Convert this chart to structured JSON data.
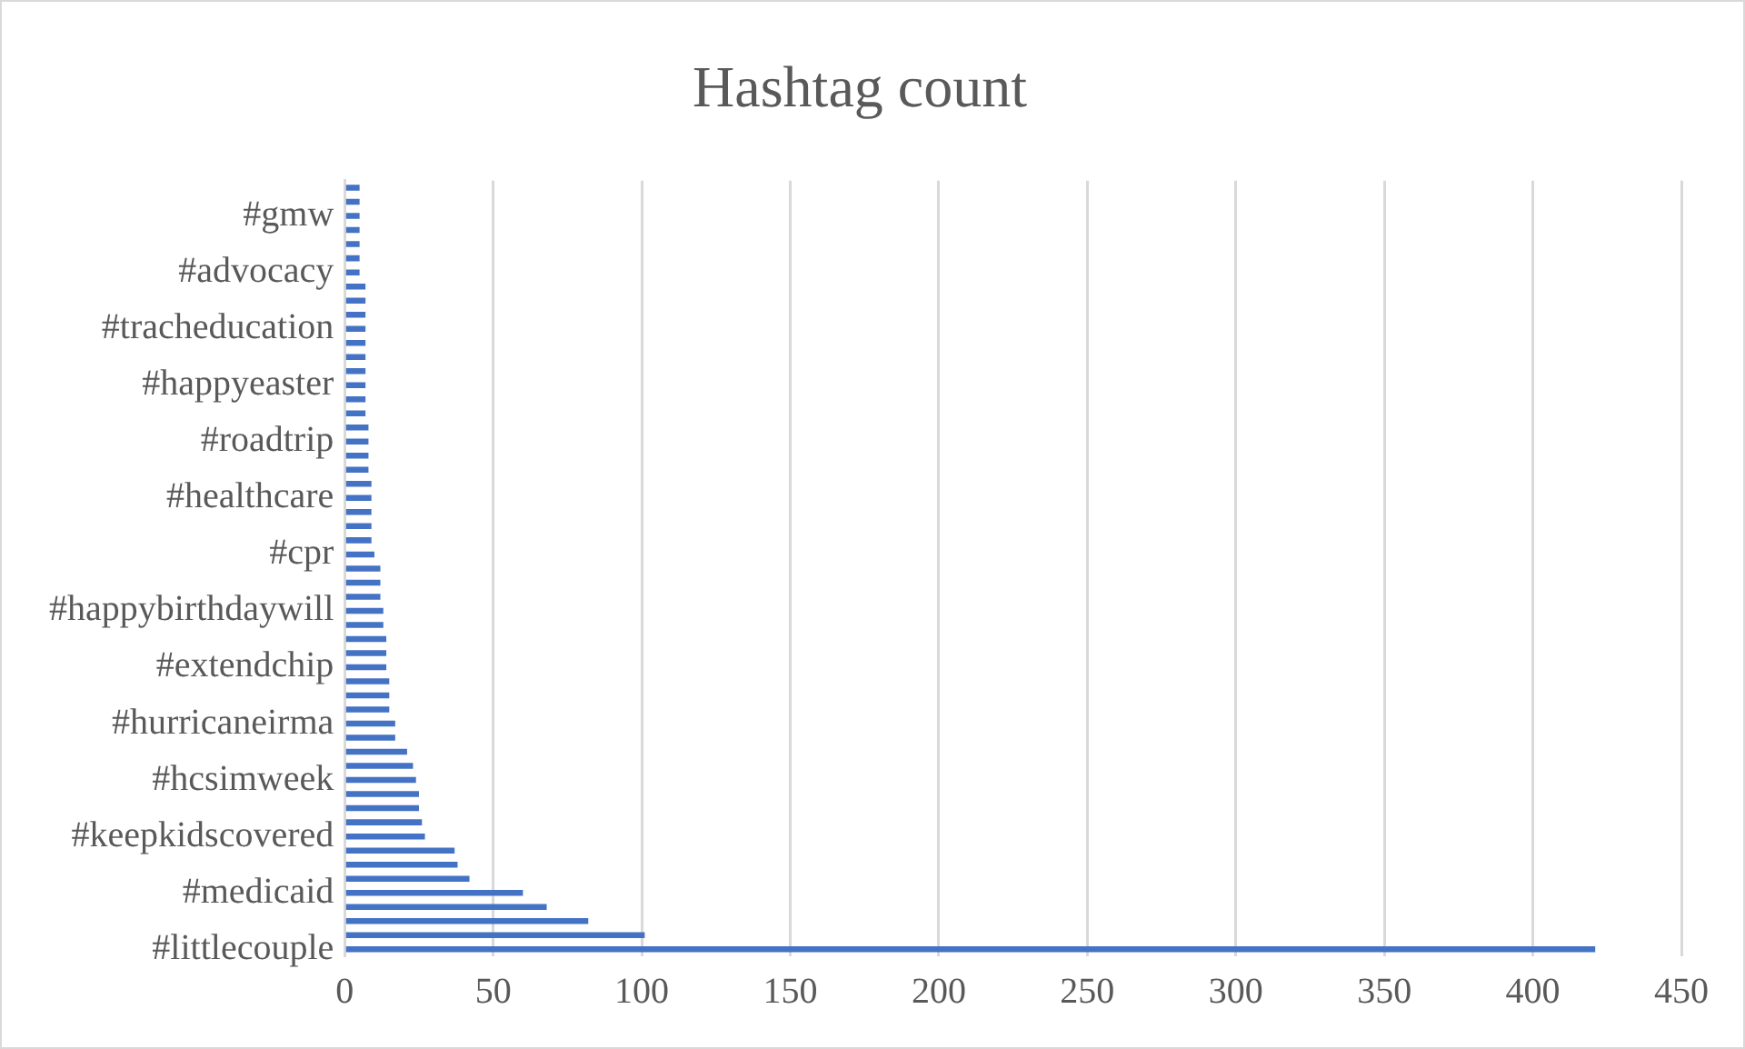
{
  "chart_data": {
    "type": "bar",
    "orientation": "horizontal",
    "title": "Hashtag count",
    "categories": [
      null,
      null,
      "#gmw",
      null,
      null,
      null,
      "#advocacy",
      null,
      null,
      null,
      "#tracheducation",
      null,
      null,
      null,
      "#happyeaster",
      null,
      null,
      null,
      "#roadtrip",
      null,
      null,
      null,
      "#healthcare",
      null,
      null,
      null,
      "#cpr",
      null,
      null,
      null,
      "#happybirthdaywill",
      null,
      null,
      null,
      "#extendchip",
      null,
      null,
      null,
      "#hurricaneirma",
      null,
      null,
      null,
      "#hcsimweek",
      null,
      null,
      null,
      "#keepkidscovered",
      null,
      null,
      null,
      "#medicaid",
      null,
      null,
      null,
      "#littlecouple"
    ],
    "values": [
      5,
      5,
      5,
      5,
      5,
      5,
      5,
      7,
      7,
      7,
      7,
      7,
      7,
      7,
      7,
      7,
      7,
      8,
      8,
      8,
      8,
      9,
      9,
      9,
      9,
      9,
      10,
      12,
      12,
      12,
      13,
      13,
      14,
      14,
      14,
      15,
      15,
      15,
      17,
      17,
      21,
      23,
      24,
      25,
      25,
      26,
      27,
      37,
      38,
      42,
      60,
      68,
      82,
      101,
      421
    ],
    "color": "#4472c4",
    "xlim": [
      0,
      450
    ],
    "xticks": [
      0,
      50,
      100,
      150,
      200,
      250,
      300,
      350,
      400,
      450
    ],
    "grid": "x",
    "legend": false
  }
}
